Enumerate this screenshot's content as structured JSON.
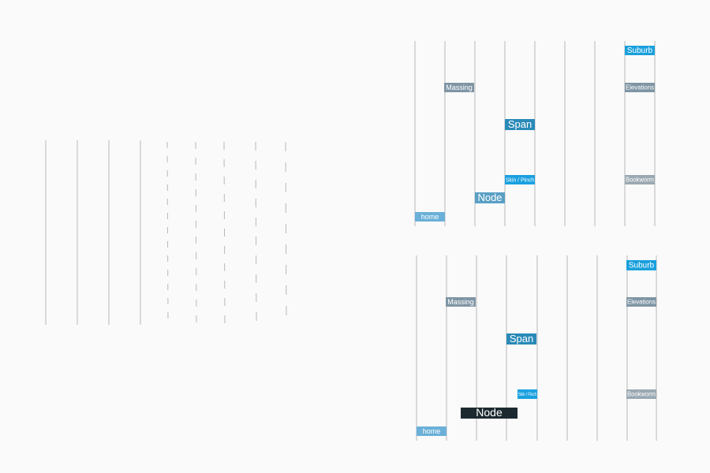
{
  "panels": [
    {
      "labels": [
        "Suburb",
        "Massing",
        "Elevations",
        "Span",
        "Skin / Pinch",
        "Bookworm",
        "Node",
        "home"
      ]
    },
    {
      "labels": [
        "Suburb",
        "Massing",
        "Elevations",
        "Span",
        "Skin / Pinch",
        "Bookworm",
        "Node",
        "home"
      ]
    }
  ]
}
